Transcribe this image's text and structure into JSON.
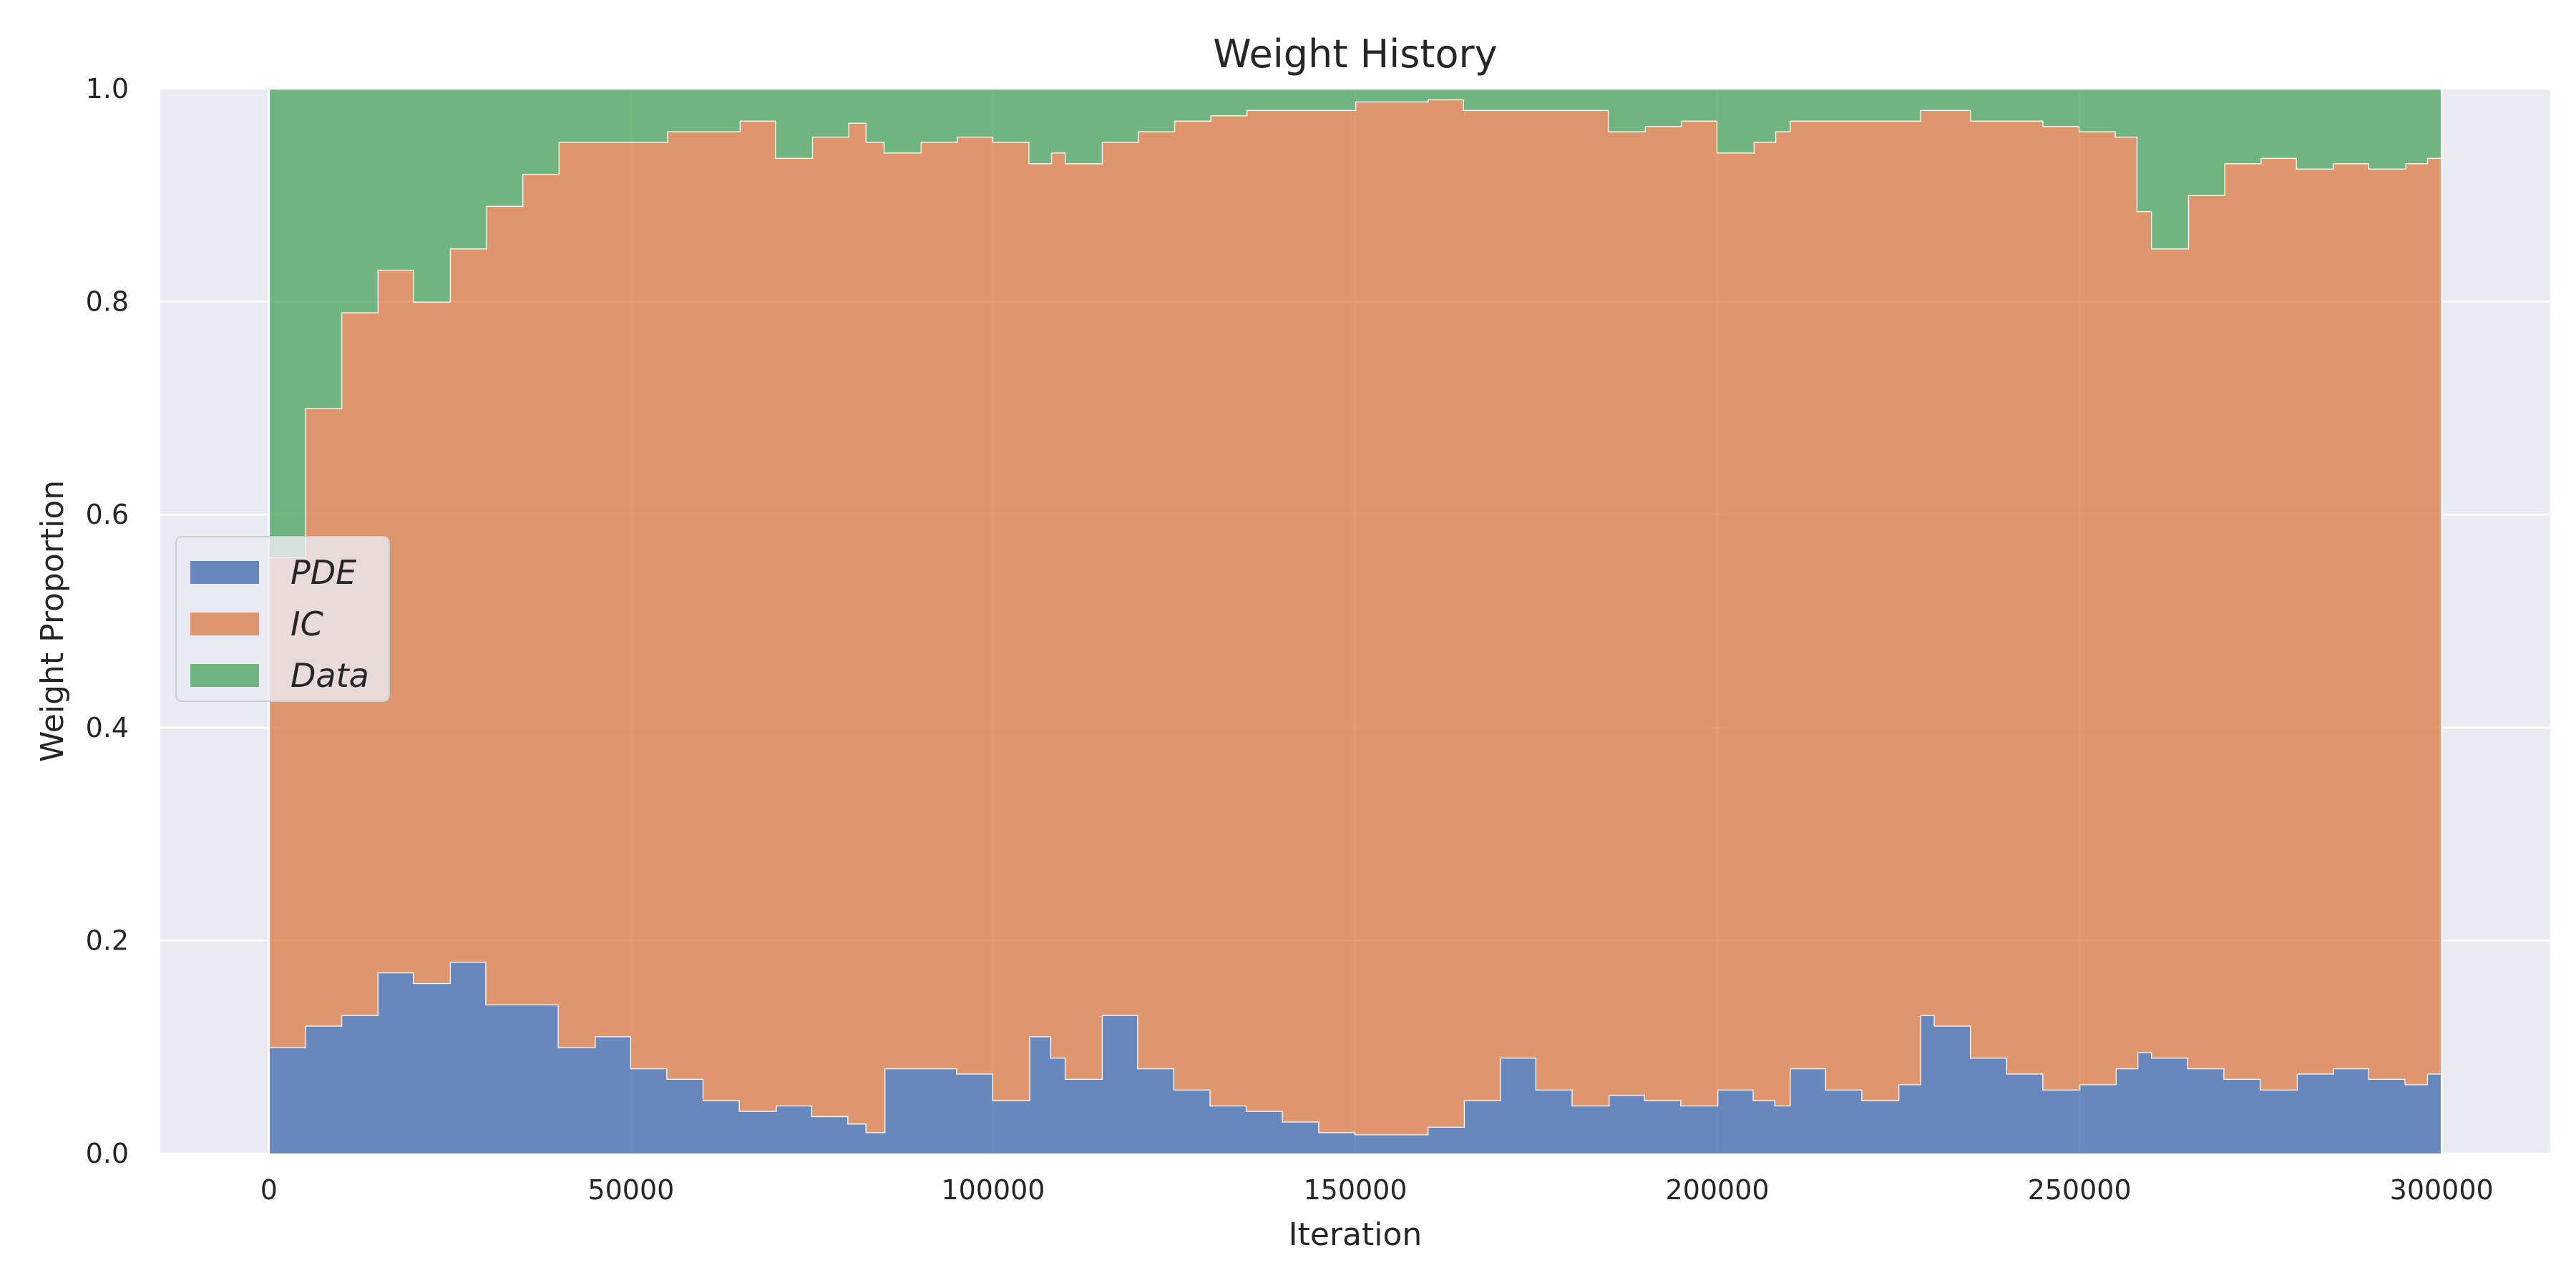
{
  "chart_data": {
    "type": "area",
    "stacked": true,
    "step": true,
    "title": "Weight History",
    "xlabel": "Iteration",
    "ylabel": "Weight Proportion",
    "xlim": [
      -15000,
      315000
    ],
    "ylim": [
      0,
      1
    ],
    "x_ticks": [
      0,
      50000,
      100000,
      150000,
      200000,
      250000,
      300000
    ],
    "x_tick_labels": [
      "0",
      "50000",
      "100000",
      "150000",
      "200000",
      "250000",
      "300000"
    ],
    "y_ticks": [
      0,
      0.2,
      0.4,
      0.6,
      0.8,
      1.0
    ],
    "y_tick_labels": [
      "0.0",
      "0.2",
      "0.4",
      "0.6",
      "0.8",
      "1.0"
    ],
    "grid": true,
    "legend_position": "center-left",
    "background_color": "#eaeaf2",
    "x": [
      0,
      5000,
      10000,
      15000,
      20000,
      25000,
      30000,
      35000,
      40000,
      45000,
      50000,
      55000,
      60000,
      65000,
      70000,
      75000,
      80000,
      82500,
      85000,
      90000,
      95000,
      100000,
      105000,
      108000,
      110000,
      115000,
      120000,
      125000,
      130000,
      135000,
      140000,
      145000,
      150000,
      155000,
      160000,
      165000,
      170000,
      175000,
      180000,
      185000,
      190000,
      195000,
      200000,
      205000,
      208000,
      210000,
      215000,
      220000,
      225000,
      228000,
      230000,
      235000,
      240000,
      245000,
      250000,
      255000,
      258000,
      260000,
      265000,
      270000,
      275000,
      280000,
      285000,
      290000,
      295000,
      298000,
      300000
    ],
    "series": [
      {
        "name": "PDE",
        "color": "#4c72b0",
        "values": [
          0.1,
          0.12,
          0.13,
          0.17,
          0.16,
          0.18,
          0.14,
          0.14,
          0.1,
          0.11,
          0.08,
          0.07,
          0.05,
          0.04,
          0.045,
          0.035,
          0.028,
          0.02,
          0.08,
          0.08,
          0.075,
          0.05,
          0.11,
          0.09,
          0.07,
          0.13,
          0.08,
          0.06,
          0.045,
          0.04,
          0.03,
          0.02,
          0.018,
          0.018,
          0.025,
          0.05,
          0.09,
          0.06,
          0.045,
          0.055,
          0.05,
          0.045,
          0.06,
          0.05,
          0.045,
          0.08,
          0.06,
          0.05,
          0.065,
          0.13,
          0.12,
          0.09,
          0.075,
          0.06,
          0.065,
          0.08,
          0.095,
          0.09,
          0.08,
          0.07,
          0.06,
          0.075,
          0.08,
          0.07,
          0.065,
          0.075,
          0.16
        ]
      },
      {
        "name": "IC",
        "color": "#dd8452",
        "values": [
          0.46,
          0.58,
          0.66,
          0.66,
          0.64,
          0.67,
          0.75,
          0.78,
          0.85,
          0.84,
          0.87,
          0.89,
          0.91,
          0.93,
          0.89,
          0.92,
          0.94,
          0.93,
          0.86,
          0.87,
          0.88,
          0.9,
          0.82,
          0.85,
          0.86,
          0.82,
          0.88,
          0.91,
          0.93,
          0.94,
          0.95,
          0.96,
          0.97,
          0.97,
          0.965,
          0.93,
          0.89,
          0.92,
          0.935,
          0.905,
          0.915,
          0.925,
          0.88,
          0.9,
          0.915,
          0.89,
          0.91,
          0.92,
          0.905,
          0.85,
          0.86,
          0.88,
          0.895,
          0.905,
          0.895,
          0.875,
          0.79,
          0.76,
          0.82,
          0.86,
          0.875,
          0.85,
          0.85,
          0.855,
          0.865,
          0.86,
          0.77
        ]
      },
      {
        "name": "Data",
        "color": "#55a868",
        "values": [
          0.44,
          0.3,
          0.21,
          0.17,
          0.2,
          0.15,
          0.11,
          0.08,
          0.05,
          0.05,
          0.05,
          0.04,
          0.04,
          0.03,
          0.065,
          0.045,
          0.032,
          0.05,
          0.06,
          0.05,
          0.045,
          0.05,
          0.07,
          0.06,
          0.07,
          0.05,
          0.04,
          0.03,
          0.025,
          0.02,
          0.02,
          0.02,
          0.012,
          0.012,
          0.01,
          0.02,
          0.02,
          0.02,
          0.02,
          0.04,
          0.035,
          0.03,
          0.06,
          0.05,
          0.04,
          0.03,
          0.03,
          0.03,
          0.03,
          0.02,
          0.02,
          0.03,
          0.03,
          0.035,
          0.04,
          0.045,
          0.115,
          0.15,
          0.1,
          0.07,
          0.065,
          0.075,
          0.07,
          0.075,
          0.07,
          0.065,
          0.07
        ]
      }
    ]
  }
}
